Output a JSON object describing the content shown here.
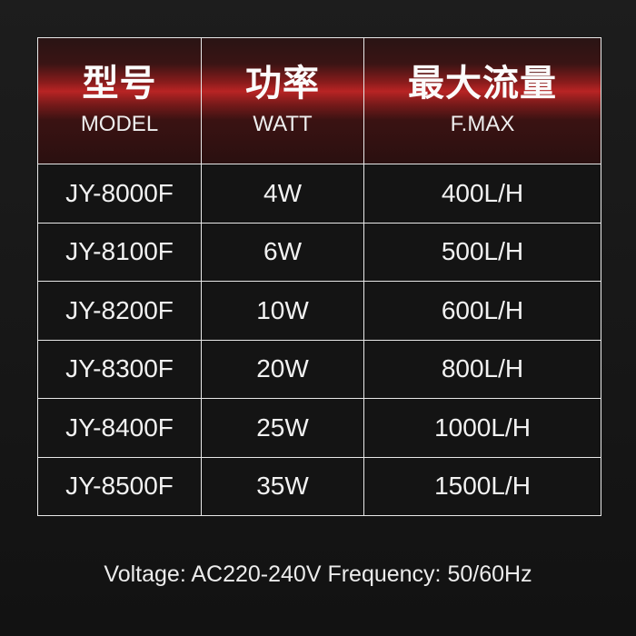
{
  "headers": [
    {
      "zh": "型号",
      "en": "MODEL"
    },
    {
      "zh": "功率",
      "en": "WATT"
    },
    {
      "zh": "最大流量",
      "en": "F.MAX"
    }
  ],
  "rows": [
    [
      "JY-8000F",
      "4W",
      "400L/H"
    ],
    [
      "JY-8100F",
      "6W",
      "500L/H"
    ],
    [
      "JY-8200F",
      "10W",
      "600L/H"
    ],
    [
      "JY-8300F",
      "20W",
      "800L/H"
    ],
    [
      "JY-8400F",
      "25W",
      "1000L/H"
    ],
    [
      "JY-8500F",
      "35W",
      "1500L/H"
    ]
  ],
  "footer": "Voltage: AC220-240V Frequency: 50/60Hz",
  "colors": {
    "background": "#161616",
    "header_band": "#b82424",
    "lines": "#e8e8e8"
  }
}
